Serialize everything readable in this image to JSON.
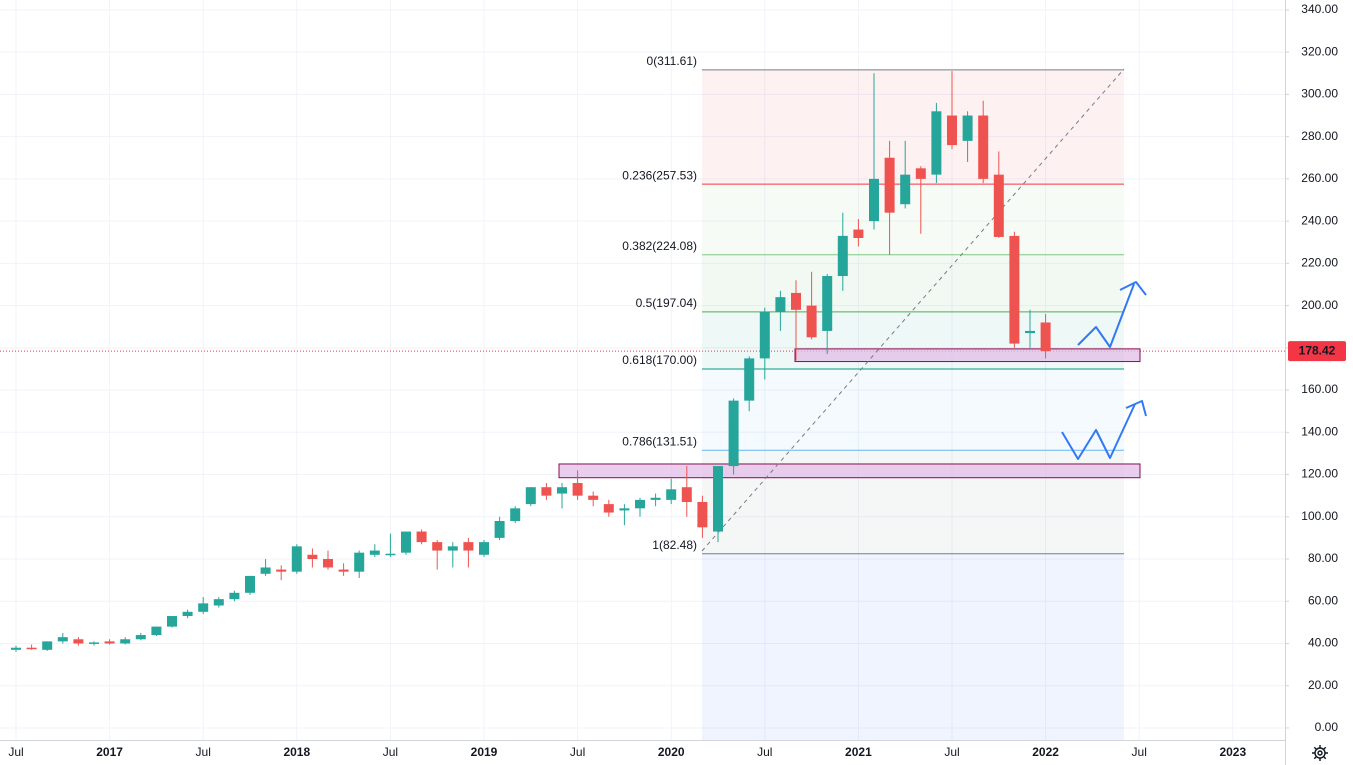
{
  "chart_data": {
    "type": "candlestick",
    "categories": [
      "Jul",
      null,
      null,
      null,
      null,
      null,
      "2017",
      null,
      null,
      null,
      null,
      null,
      "Jul",
      null,
      null,
      null,
      null,
      null,
      "2018",
      null,
      null,
      null,
      null,
      null,
      "Jul",
      null,
      null,
      null,
      null,
      null,
      "2019",
      null,
      null,
      null,
      null,
      null,
      "Jul",
      null,
      null,
      null,
      null,
      null,
      "2020",
      null,
      null,
      null,
      null,
      null,
      "Jul",
      null,
      null,
      null,
      null,
      null,
      "2021",
      null,
      null,
      null,
      null,
      null,
      "Jul",
      null,
      null,
      null,
      null,
      null,
      "2022",
      null,
      null,
      null,
      null,
      null,
      "Jul",
      null,
      null,
      null,
      null,
      null,
      "2023",
      null,
      null
    ],
    "open": [
      37,
      38,
      37,
      41,
      42,
      40,
      41,
      40,
      42,
      44,
      48,
      53,
      55,
      58,
      61,
      64,
      73,
      75,
      74,
      82,
      80,
      75,
      74,
      82,
      82,
      83,
      93,
      88,
      84,
      88,
      82,
      90,
      98,
      106,
      114,
      111,
      116,
      110,
      106,
      103,
      104,
      108,
      108,
      114,
      107,
      93,
      124,
      155,
      175,
      197,
      206,
      200,
      188,
      214,
      236,
      240,
      270,
      248,
      265,
      262,
      290,
      278,
      290,
      262,
      233,
      187,
      192,
      null,
      null,
      null,
      null,
      null,
      null,
      null,
      null,
      null,
      null,
      null,
      null,
      null,
      null
    ],
    "high": [
      39,
      39.5,
      41,
      45,
      43,
      41,
      42,
      43,
      45,
      48,
      53,
      56,
      62,
      62,
      65,
      72,
      80,
      77,
      87,
      85,
      84,
      78,
      84,
      87,
      92,
      93,
      94,
      89,
      88,
      90,
      89,
      100,
      105,
      114,
      116,
      116,
      122,
      112,
      108,
      106,
      109,
      111,
      118,
      124,
      110,
      124,
      156,
      176,
      199,
      207,
      212,
      216,
      215,
      244,
      241,
      310,
      278,
      278,
      266,
      296,
      311,
      292,
      297,
      273,
      235,
      198,
      196,
      null,
      null,
      null,
      null,
      null,
      null,
      null,
      null,
      null,
      null,
      null,
      null,
      null,
      null
    ],
    "low": [
      36,
      37,
      36.5,
      40,
      39,
      39,
      39.5,
      39.5,
      41.5,
      43.5,
      47.5,
      52,
      54,
      57,
      60,
      63,
      72,
      70,
      73,
      76,
      75,
      72,
      71,
      81,
      81,
      82,
      87,
      75,
      76,
      76,
      81,
      89,
      97,
      105,
      108,
      104,
      108,
      105,
      100,
      96,
      100,
      105,
      106,
      100,
      90,
      88,
      120,
      150,
      165,
      188,
      174,
      184,
      177,
      207,
      228,
      236,
      224,
      246,
      234,
      258,
      274,
      268,
      258,
      232,
      180,
      180,
      175,
      null,
      null,
      null,
      null,
      null,
      null,
      null,
      null,
      null,
      null,
      null,
      null,
      null,
      null
    ],
    "close": [
      38,
      37.5,
      41,
      43,
      40,
      40.5,
      40,
      42,
      44,
      48,
      53,
      55,
      59,
      61,
      64,
      72,
      76,
      74,
      86,
      80,
      76,
      74,
      83,
      84,
      82.5,
      93,
      88,
      84,
      86,
      84,
      88,
      98,
      104,
      114,
      110,
      114,
      110,
      108,
      102,
      104,
      108,
      109,
      113,
      107,
      95,
      124,
      155,
      175,
      197,
      204,
      198,
      185,
      214,
      233,
      232,
      260,
      244,
      262,
      260,
      292,
      276,
      290,
      260,
      232.5,
      182,
      188,
      178.42,
      null,
      null,
      null,
      null,
      null,
      null,
      null,
      null,
      null,
      null,
      null,
      null,
      null,
      null
    ],
    "up_color": "#26a69a",
    "down_color": "#ef5350",
    "ylim": [
      -5.7,
      344.7
    ],
    "yticks": [
      {
        "value": 0,
        "label": "0.00"
      },
      {
        "value": 20,
        "label": "20.00"
      },
      {
        "value": 40,
        "label": "40.00"
      },
      {
        "value": 60,
        "label": "60.00"
      },
      {
        "value": 80,
        "label": "80.00"
      },
      {
        "value": 100,
        "label": "100.00"
      },
      {
        "value": 120,
        "label": "120.00"
      },
      {
        "value": 140,
        "label": "140.00"
      },
      {
        "value": 160,
        "label": "160.00"
      },
      {
        "value": 180,
        "label": "180.00"
      },
      {
        "value": 200,
        "label": "200.00"
      },
      {
        "value": 220,
        "label": "220.00"
      },
      {
        "value": 240,
        "label": "240.00"
      },
      {
        "value": 260,
        "label": "260.00"
      },
      {
        "value": 280,
        "label": "280.00"
      },
      {
        "value": 300,
        "label": "300.00"
      },
      {
        "value": 320,
        "label": "320.00"
      },
      {
        "value": 340,
        "label": "340.00"
      }
    ],
    "grid": true,
    "last_price": 178.42,
    "last_price_color": "#f23645",
    "fib_levels": [
      {
        "label": "0(311.61)",
        "price": 311.61,
        "color": "#787b86"
      },
      {
        "label": "0.236(257.53)",
        "price": 257.53,
        "color": "#f23645"
      },
      {
        "label": "0.382(224.08)",
        "price": 224.08,
        "color": "#81c784"
      },
      {
        "label": "0.5(197.04)",
        "price": 197.04,
        "color": "#4caf50"
      },
      {
        "label": "0.618(170.00)",
        "price": 170.0,
        "color": "#089981"
      },
      {
        "label": "0.786(131.51)",
        "price": 131.51,
        "color": "#64b5f6"
      },
      {
        "label": "1(82.48)",
        "price": 82.48,
        "color": "#787b86"
      }
    ],
    "zones": [
      {
        "low": 173.5,
        "high": 179.5,
        "color": "#e1bee7"
      },
      {
        "low": 118.5,
        "high": 125,
        "color": "#e1bee7"
      }
    ]
  }
}
